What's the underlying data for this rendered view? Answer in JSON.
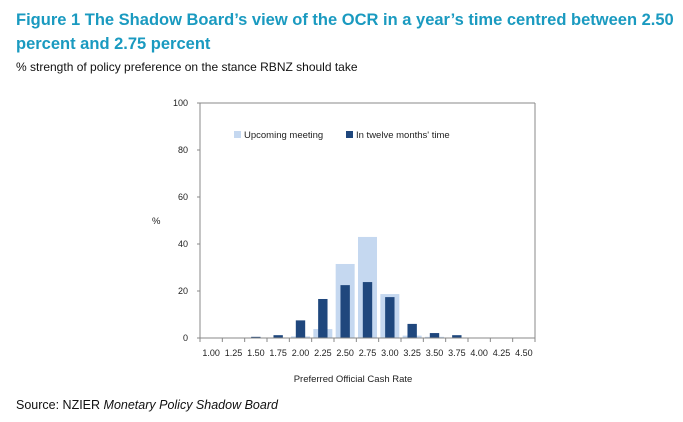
{
  "chart_data": {
    "type": "bar",
    "title": "Figure 1 The Shadow Board’s view of the OCR in a year’s time centred between 2.50 percent and 2.75 percent",
    "subtitle": "% strength of policy preference on the stance RBNZ should take",
    "xlabel": "Preferred  Official Cash Rate",
    "ylabel": "%",
    "ylim": [
      0,
      100
    ],
    "yticks": [
      "0",
      "20",
      "40",
      "60",
      "80",
      "100"
    ],
    "categories": [
      "1.00",
      "1.25",
      "1.50",
      "1.75",
      "2.00",
      "2.25",
      "2.50",
      "2.75",
      "3.00",
      "3.25",
      "3.50",
      "3.75",
      "4.00",
      "4.25",
      "4.50"
    ],
    "legend_position": "top-left",
    "series": [
      {
        "name": "Upcoming meeting",
        "color": "#c5d8f0",
        "values": [
          0,
          0,
          0,
          0,
          0.7,
          3.8,
          31.5,
          43,
          18.7,
          1,
          0.5,
          0,
          0,
          0,
          0
        ]
      },
      {
        "name": "In twelve months' time",
        "color": "#1f477d",
        "values": [
          0,
          0,
          0.5,
          1.2,
          7.5,
          16.6,
          22.5,
          23.8,
          17.4,
          6,
          2.1,
          1.2,
          0,
          0,
          0
        ]
      }
    ],
    "source_prefix": "Source: NZIER ",
    "source_title": "Monetary Policy Shadow Board"
  }
}
